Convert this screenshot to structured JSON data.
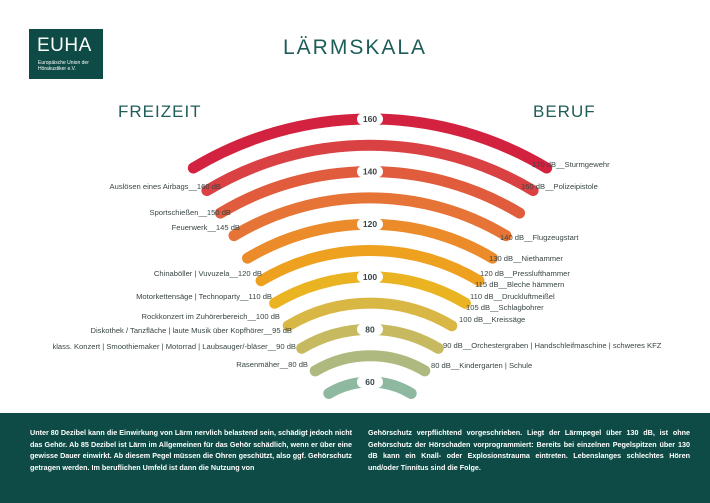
{
  "logo": {
    "name": "EUHA",
    "subtitle": "Europäische Union der Hörakustiker e.V."
  },
  "title": "LÄRMSKALA",
  "left_heading": "FREIZEIT",
  "right_heading": "BERUF",
  "scale": {
    "levels": [
      60,
      70,
      80,
      90,
      100,
      110,
      120,
      130,
      140,
      150,
      160
    ],
    "labeled": [
      "60",
      "80",
      "100",
      "120",
      "140",
      "160"
    ],
    "colors": [
      "#8fb8a0",
      "#aeb97f",
      "#c6b95f",
      "#d9b744",
      "#eab322",
      "#eea11f",
      "#eb8b2a",
      "#e67436",
      "#e05c3c",
      "#da4143",
      "#d3223f"
    ]
  },
  "left_items": [
    "Auslösen eines Airbags__160 dB",
    "Sportschießen__150 dB",
    "Feuerwerk__145 dB",
    "Chinaböller  |  Vuvuzela__120 dB",
    "Motorkettensäge  |  Technoparty__110 dB",
    "Rockkonzert im Zuhörerbereich__100 dB",
    "Diskothek / Tanzfläche  |  laute Musik über Kopfhörer__95 dB",
    "klass. Konzert  |  Smoothiemaker  |  Motorrad  |  Laubsauger/-bläser__90 dB",
    "Rasenmäher__80 dB"
  ],
  "right_items": [
    "170 dB__Sturmgewehr",
    "160 dB__Polizeipistole",
    "140 dB__Flugzeugstart",
    "130 dB__Niethammer",
    "120 dB__Presslufthammer",
    "115 dB__Bleche hämmern",
    "110 dB__Druckluftmeißel",
    "105 dB__Schlagbohrer",
    "100 dB__Kreissäge",
    "90 dB__Orchestergraben  |  Handschleifmaschine  |  schweres KFZ",
    "80 dB__Kindergarten  |  Schule"
  ],
  "footer": {
    "left": "Unter 80 Dezibel kann die Einwirkung von Lärm nervlich belastend sein, schädigt jedoch nicht das Gehör. Ab 85 Dezibel ist Lärm im Allgemeinen für das Gehör schädlich, wenn er über eine gewisse Dauer einwirkt. Ab diesem Pegel müssen die Ohren geschützt, also ggf. Gehörschutz getragen werden. Im beruflichen Umfeld ist dann die Nutzung von",
    "right": "Gehörschutz verpflichtend vorgeschrieben. Liegt der Lärmpegel über 130 dB, ist ohne Gehörschutz der Hörschaden vorprogrammiert: Bereits bei einzelnen Pegelspitzen über 130 dB kann ein Knall- oder Explosionstrauma eintreten. Lebenslanges schlechtes Hören und/oder Tinnitus sind die Folge."
  }
}
